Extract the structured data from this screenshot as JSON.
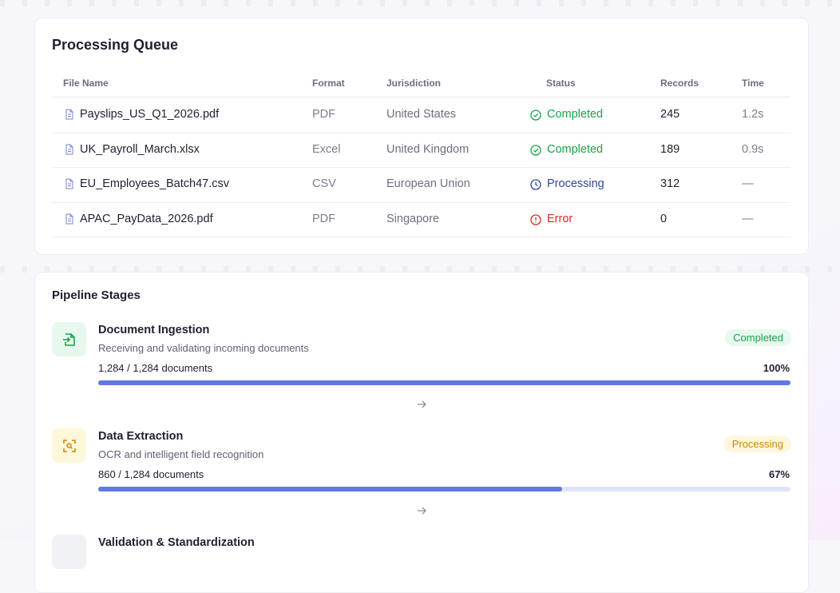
{
  "queue": {
    "title": "Processing Queue",
    "columns": [
      "File Name",
      "Format",
      "Jurisdiction",
      "Status",
      "Records",
      "Time"
    ],
    "rows": [
      {
        "file": "Payslips_US_Q1_2026.pdf",
        "format": "PDF",
        "jurisdiction": "United States",
        "status": "Completed",
        "status_color": "#16a34a",
        "records": "245",
        "time": "1.2s"
      },
      {
        "file": "UK_Payroll_March.xlsx",
        "format": "Excel",
        "jurisdiction": "United Kingdom",
        "status": "Completed",
        "status_color": "#16a34a",
        "records": "189",
        "time": "0.9s"
      },
      {
        "file": "EU_Employees_Batch47.csv",
        "format": "CSV",
        "jurisdiction": "European Union",
        "status": "Processing",
        "status_color": "#3346a0",
        "records": "312",
        "time": "—"
      },
      {
        "file": "APAC_PayData_2026.pdf",
        "format": "PDF",
        "jurisdiction": "Singapore",
        "status": "Error",
        "status_color": "#dc2626",
        "records": "0",
        "time": "—"
      }
    ]
  },
  "pipeline": {
    "title": "Pipeline Stages",
    "stages": [
      {
        "title": "Document Ingestion",
        "description": "Receiving and validating incoming documents",
        "count": "1,284 / 1,284 documents",
        "badge": "Completed",
        "percent": {
          "value": 100,
          "label": "100%"
        },
        "color": "#16a34a",
        "tint": "#e7f8ee"
      },
      {
        "title": "Data Extraction",
        "description": "OCR and intelligent field recognition",
        "count": "860 / 1,284 documents",
        "badge": "Processing",
        "percent": {
          "value": 67,
          "label": "67%"
        },
        "color": "#ca8a04",
        "tint": "#fef7dc"
      },
      {
        "title": "Validation & Standardization",
        "color": "#6b7280",
        "tint": "#f1f2f6"
      }
    ]
  }
}
